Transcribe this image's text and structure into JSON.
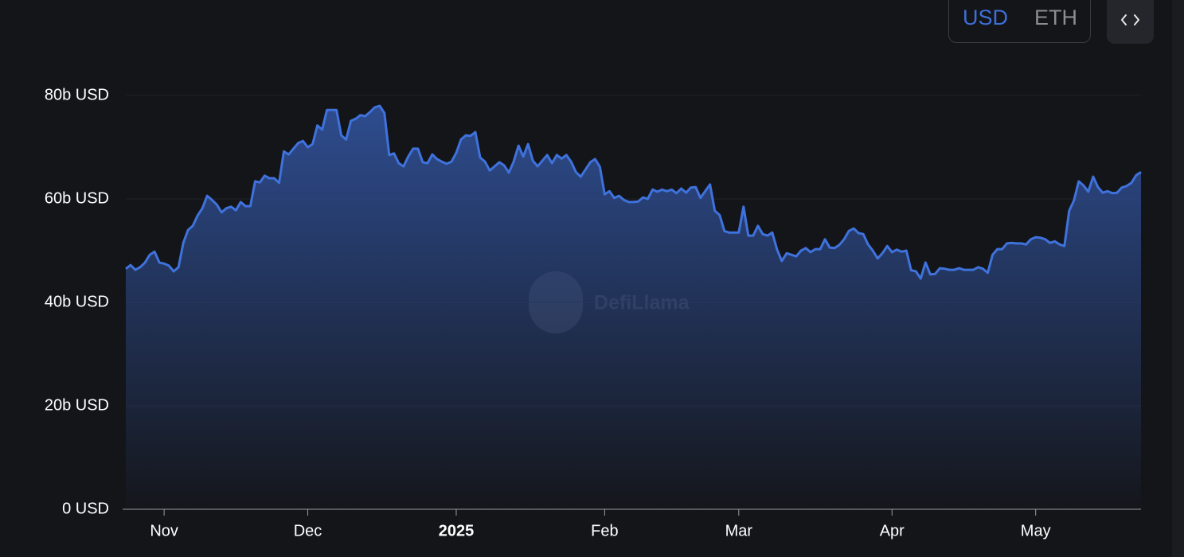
{
  "toggle": {
    "options": [
      "USD",
      "ETH"
    ]
  },
  "watermark": "DefiLlama",
  "chart_data": {
    "type": "area",
    "color": "#3f72dc",
    "grid": true,
    "ylim": [
      0,
      80
    ],
    "yticks": [
      {
        "value": 0,
        "label": "0 USD"
      },
      {
        "value": 20,
        "label": "20b USD"
      },
      {
        "value": 40,
        "label": "40b USD"
      },
      {
        "value": 60,
        "label": "60b USD"
      },
      {
        "value": 80,
        "label": "80b USD"
      }
    ],
    "categories": [
      null,
      null,
      null,
      null,
      null,
      null,
      null,
      null,
      "Nov",
      null,
      null,
      null,
      null,
      null,
      null,
      null,
      null,
      null,
      null,
      null,
      null,
      null,
      null,
      null,
      null,
      null,
      null,
      null,
      null,
      null,
      null,
      null,
      null,
      null,
      null,
      null,
      null,
      null,
      "Dec",
      null,
      null,
      null,
      null,
      null,
      null,
      null,
      null,
      null,
      null,
      null,
      null,
      null,
      null,
      null,
      null,
      null,
      null,
      null,
      null,
      null,
      null,
      null,
      null,
      null,
      null,
      null,
      null,
      null,
      null,
      "2025",
      null,
      null,
      null,
      null,
      null,
      null,
      null,
      null,
      null,
      null,
      null,
      null,
      null,
      null,
      null,
      null,
      null,
      null,
      null,
      null,
      null,
      null,
      null,
      null,
      null,
      null,
      null,
      null,
      null,
      null,
      "Feb",
      null,
      null,
      null,
      null,
      null,
      null,
      null,
      null,
      null,
      null,
      null,
      null,
      null,
      null,
      null,
      null,
      null,
      null,
      null,
      null,
      null,
      null,
      null,
      null,
      null,
      null,
      null,
      "Mar",
      null,
      null,
      null,
      null,
      null,
      null,
      null,
      null,
      null,
      null,
      null,
      null,
      null,
      null,
      null,
      null,
      null,
      null,
      null,
      null,
      null,
      null,
      null,
      null,
      null,
      null,
      null,
      null,
      null,
      null,
      null,
      "Apr",
      null,
      null,
      null,
      null,
      null,
      null,
      null,
      null,
      null,
      null,
      null,
      null,
      null,
      null,
      null,
      null,
      null,
      null,
      null,
      null,
      null,
      null,
      null,
      null,
      null,
      null,
      null,
      null,
      null,
      "May",
      null,
      null,
      null,
      null,
      null,
      null,
      null,
      null,
      null,
      null,
      null,
      null,
      null,
      null,
      null,
      null,
      null,
      null,
      null,
      null,
      null,
      null
    ],
    "values": [
      46.5,
      47.2,
      46.3,
      46.8,
      47.7,
      49.2,
      49.8,
      47.7,
      47.5,
      47.1,
      46,
      46.8,
      51.5,
      54,
      54.8,
      56.8,
      58.2,
      60.6,
      59.8,
      58.9,
      57.4,
      58.2,
      58.5,
      57.8,
      59.4,
      58.6,
      58.6,
      63.4,
      63.2,
      64.5,
      64,
      64,
      63.1,
      69.2,
      68.6,
      69.7,
      70.8,
      71.2,
      70,
      70.6,
      74.2,
      73.4,
      77.2,
      77.2,
      77.2,
      72.3,
      71.5,
      75.1,
      75.5,
      76.2,
      76,
      76.8,
      77.7,
      78,
      76.6,
      68.5,
      68.8,
      66.9,
      66.3,
      68.2,
      69.7,
      69.7,
      67.1,
      66.9,
      68.6,
      67.7,
      67.2,
      66.8,
      67.2,
      68.9,
      71.5,
      72.3,
      72.2,
      72.9,
      68,
      67.2,
      65.5,
      66.3,
      67.1,
      66.5,
      65.1,
      67.2,
      70.3,
      68.2,
      70.6,
      67.4,
      66.3,
      67.4,
      68.5,
      66.9,
      68.5,
      67.8,
      68.5,
      67.2,
      65.2,
      64.3,
      65.7,
      67.1,
      67.7,
      66.2,
      60.9,
      61.5,
      60.2,
      60.6,
      59.8,
      59.4,
      59.4,
      59.5,
      60.3,
      60,
      61.8,
      61.4,
      61.8,
      61.5,
      61.8,
      61.1,
      62,
      61.2,
      62.2,
      62.3,
      60.2,
      61.5,
      62.8,
      57.7,
      56.9,
      53.8,
      53.5,
      53.5,
      53.5,
      58.5,
      52.9,
      52.9,
      54.8,
      53.2,
      52.9,
      53.5,
      50.2,
      48,
      49.5,
      49.2,
      48.9,
      50,
      50.5,
      49.7,
      50.3,
      50.3,
      52.2,
      50.6,
      50.5,
      51.1,
      52.2,
      53.8,
      54.3,
      53.4,
      53.2,
      51.2,
      50,
      48.5,
      49.5,
      50.9,
      49.7,
      50.2,
      49.8,
      50,
      46.2,
      46,
      44.6,
      47.7,
      45.4,
      45.5,
      46.6,
      46.5,
      46.3,
      46.3,
      46.6,
      46.3,
      46.3,
      46.3,
      46.8,
      46.5,
      45.7,
      49.2,
      50.3,
      50.3,
      51.4,
      51.5,
      51.4,
      51.4,
      51.2,
      52.2,
      52.6,
      52.5,
      52.2,
      51.5,
      51.8,
      51.2,
      50.9,
      57.7,
      59.7,
      63.4,
      62.6,
      61.4,
      64.3,
      62.3,
      61.2,
      61.5,
      61.1,
      61.2,
      62.2,
      62.5,
      63.1,
      64.6,
      65.2
    ]
  }
}
